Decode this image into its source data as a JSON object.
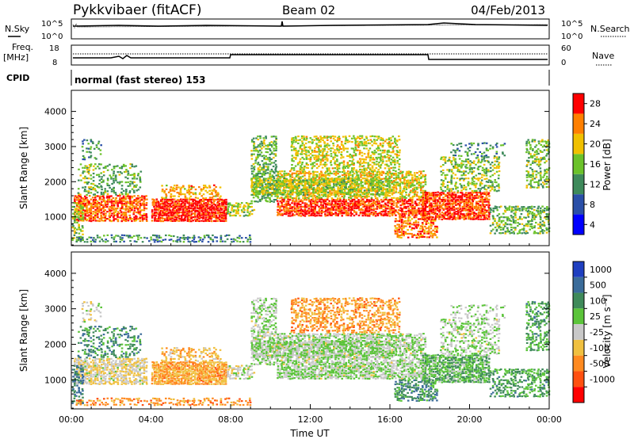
{
  "header": {
    "title": "Pykkvibaer (fitACF)",
    "beam": "Beam 02",
    "date": "04/Feb/2013"
  },
  "status_panels": {
    "nsky_label": "N.Sky",
    "nsearch_label": "N.Search",
    "noise_ticks": [
      "10^5",
      "10^0"
    ],
    "freq_label": "Freq.",
    "freq_unit": "[MHz]",
    "freq_ticks": [
      "18",
      "8"
    ],
    "nave_label": "Nave",
    "nave_ticks": [
      "60",
      "0"
    ],
    "cpid_label": "CPID",
    "cpid_text": "normal (fast stereo) 153"
  },
  "chart_data": [
    {
      "type": "heatmap",
      "name": "power",
      "ylabel": "Slant Range [km]",
      "yticks": [
        1000,
        2000,
        3000,
        4000
      ],
      "ylim": [
        180,
        4600
      ],
      "xlim": [
        0,
        24
      ],
      "colorbar_label": "Power [dB]",
      "colorbar_ticks": [
        "4",
        "8",
        "12",
        "16",
        "20",
        "24",
        "28"
      ],
      "colorbar_colors": [
        "#0000ff",
        "#2a4fa8",
        "#3e8a5b",
        "#6bc22a",
        "#f0c000",
        "#ff7f00",
        "#ff0000"
      ]
    },
    {
      "type": "heatmap",
      "name": "velocity",
      "ylabel": "Slant Range [km]",
      "yticks": [
        1000,
        2000,
        3000,
        4000
      ],
      "ylim": [
        180,
        4600
      ],
      "xlim": [
        0,
        24
      ],
      "xlabel": "Time UT",
      "xticks": [
        "00:00",
        "04:00",
        "08:00",
        "12:00",
        "16:00",
        "20:00",
        "00:00"
      ],
      "colorbar_label": "Velocity [m s⁻¹]",
      "colorbar_ticks": [
        "1000",
        "500",
        "100",
        "25",
        "-25",
        "-100",
        "-500",
        "-1000"
      ],
      "colorbar_colors": [
        "#1f3fc0",
        "#3b6c9a",
        "#3f8a5a",
        "#5bc43a",
        "#c8c8c8",
        "#f0c040",
        "#ff8a20",
        "#ff5010",
        "#ff0000"
      ]
    }
  ]
}
